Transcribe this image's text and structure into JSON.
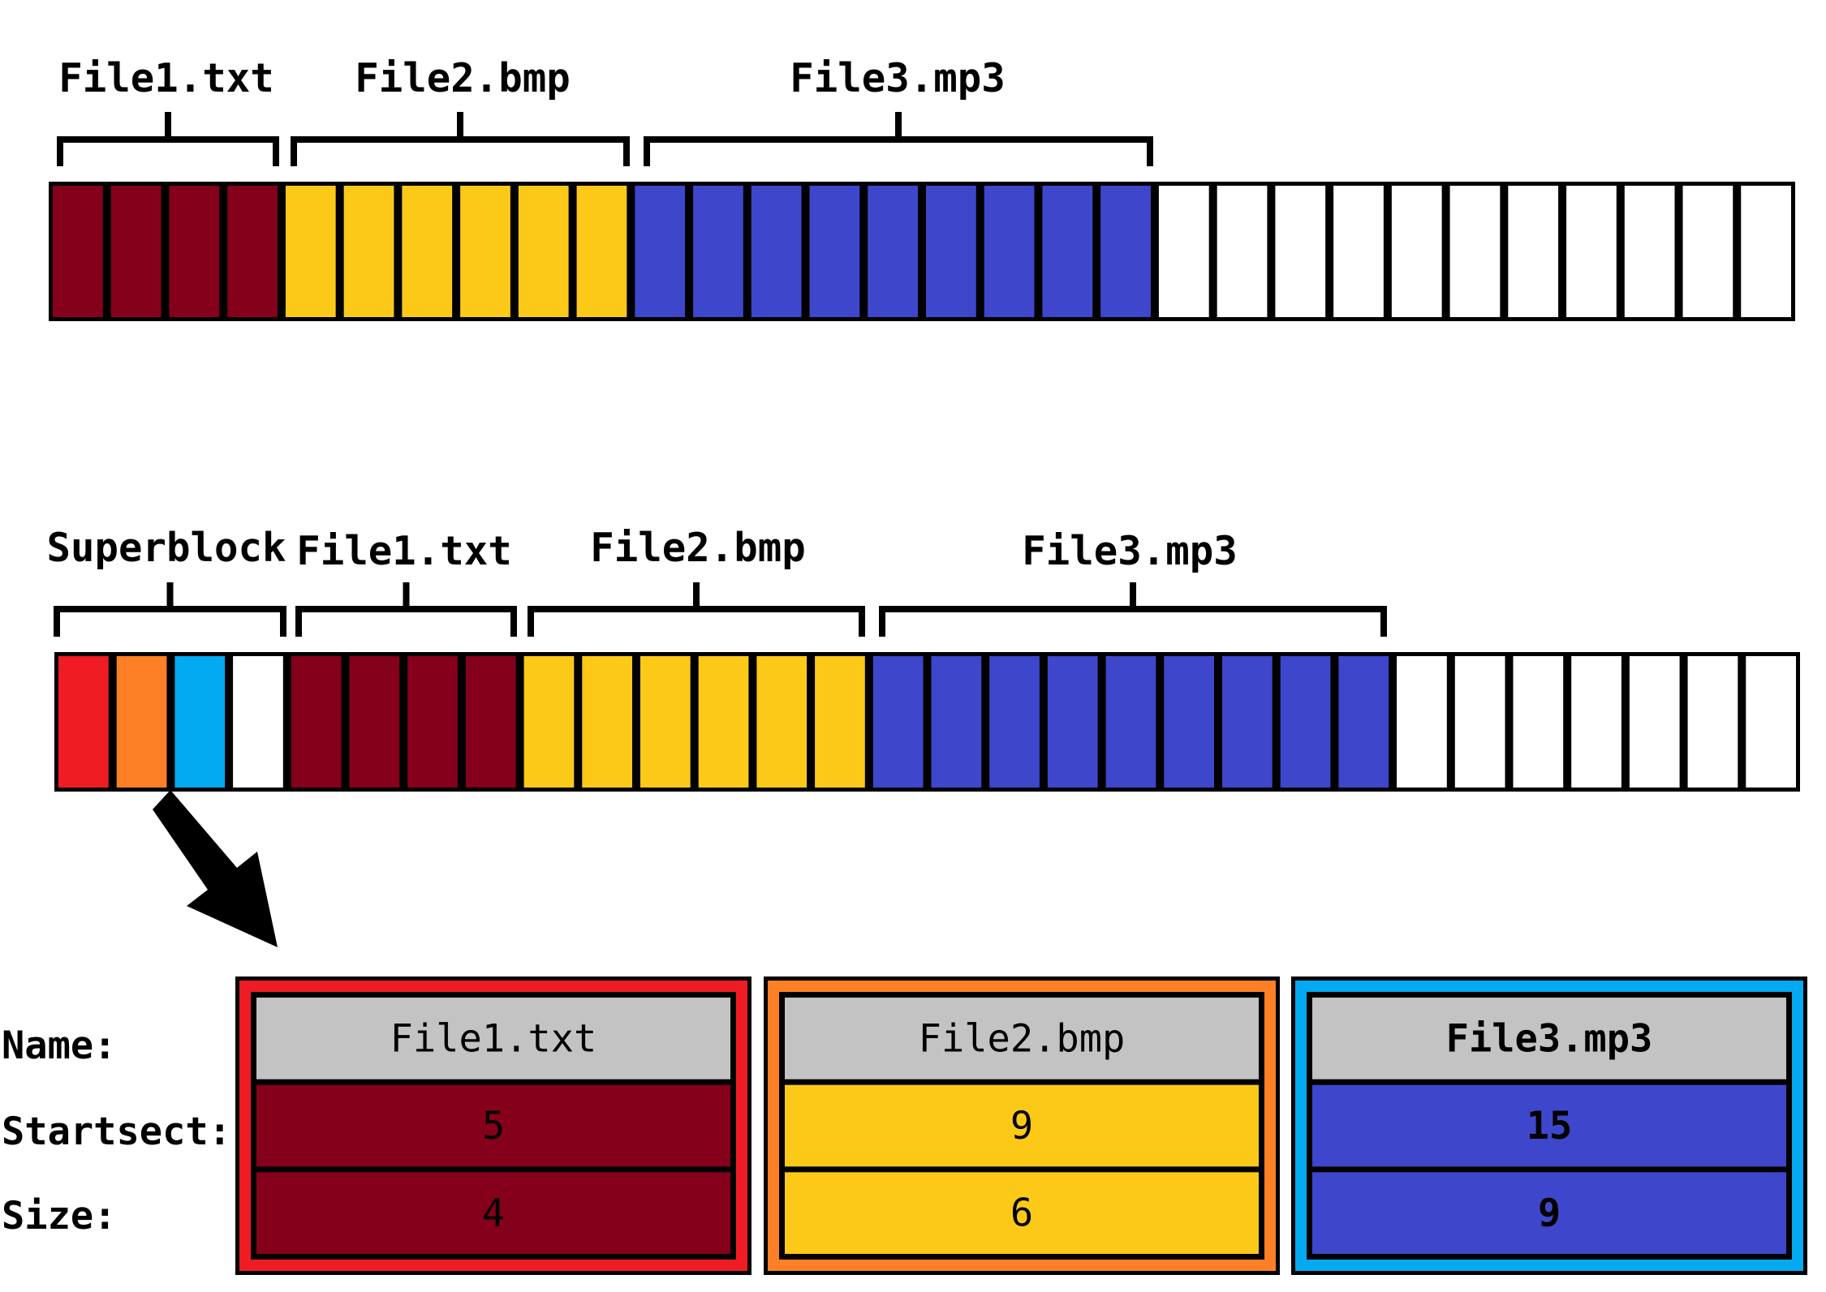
{
  "colors": {
    "file1": "#85001b",
    "file2": "#fdc919",
    "file3": "#3e47cb",
    "empty": "#ffffff",
    "super_red": "#ef1c24",
    "super_orange": "#fd8026",
    "super_blue": "#03a9f1",
    "header_gray": "#c3c3c3",
    "stroke": "#000000"
  },
  "diagram1": {
    "labels": [
      "File1.txt",
      "File2.bmp",
      "File3.mp3"
    ],
    "blocks": [
      {
        "label": "File1.txt",
        "count": 4,
        "color": "file1"
      },
      {
        "label": "File2.bmp",
        "count": 6,
        "color": "file2"
      },
      {
        "label": "File3.mp3",
        "count": 9,
        "color": "file3"
      },
      {
        "label": "",
        "count": 11,
        "color": "empty"
      }
    ]
  },
  "diagram2": {
    "labels": [
      "Superblock",
      "File1.txt",
      "File2.bmp",
      "File3.mp3"
    ],
    "blocks": [
      {
        "label": "Superblock",
        "count": 4,
        "colors": [
          "super_red",
          "super_orange",
          "super_blue",
          "empty"
        ]
      },
      {
        "label": "File1.txt",
        "count": 4,
        "color": "file1"
      },
      {
        "label": "File2.bmp",
        "count": 6,
        "color": "file2"
      },
      {
        "label": "File3.mp3",
        "count": 9,
        "color": "file3"
      },
      {
        "label": "",
        "count": 7,
        "color": "empty"
      }
    ]
  },
  "superblock_table": {
    "row_labels": [
      "Name:",
      "Startsect:",
      "Size:"
    ],
    "entries": [
      {
        "name": "File1.txt",
        "startsect": "5",
        "size": "4",
        "frame": "super_red",
        "fill": "file1"
      },
      {
        "name": "File2.bmp",
        "startsect": "9",
        "size": "6",
        "frame": "super_orange",
        "fill": "file2"
      },
      {
        "name": "File3.mp3",
        "startsect": "15",
        "size": "9",
        "frame": "super_blue",
        "fill": "file3"
      }
    ]
  }
}
